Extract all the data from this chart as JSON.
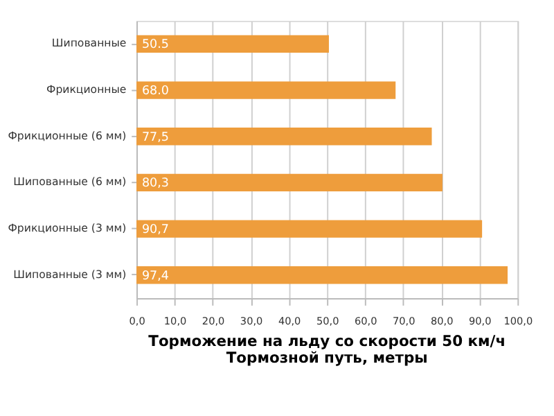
{
  "chart_data": {
    "type": "bar",
    "orientation": "horizontal",
    "title": "Торможение на льду со скорости 50 км/ч",
    "subtitle": "Тормозной путь, метры",
    "categories": [
      "Шипованные",
      "Фрикционные",
      "Фрикционные (6 мм)",
      "Шипованные (6 мм)",
      "Фрикционные (3 мм)",
      "Шипованные (3 мм)"
    ],
    "values": [
      50.5,
      68.0,
      77.5,
      80.3,
      90.7,
      97.4
    ],
    "value_labels": [
      "50.5",
      "68.0",
      "77,5",
      "80,3",
      "90,7",
      "97,4"
    ],
    "color": "#ee9d3c",
    "xlim": [
      0,
      100
    ],
    "xticks": [
      {
        "value": 0,
        "label": "0,0"
      },
      {
        "value": 10,
        "label": "10,0"
      },
      {
        "value": 20,
        "label": "20,0"
      },
      {
        "value": 30,
        "label": "30,0"
      },
      {
        "value": 40,
        "label": "40,0"
      },
      {
        "value": 50,
        "label": "50,0"
      },
      {
        "value": 60,
        "label": "60,0"
      },
      {
        "value": 70,
        "label": "70,0"
      },
      {
        "value": 80,
        "label": "80,0"
      },
      {
        "value": 90,
        "label": "90,0"
      },
      {
        "value": 100,
        "label": "100,0"
      }
    ],
    "grid": "x"
  }
}
